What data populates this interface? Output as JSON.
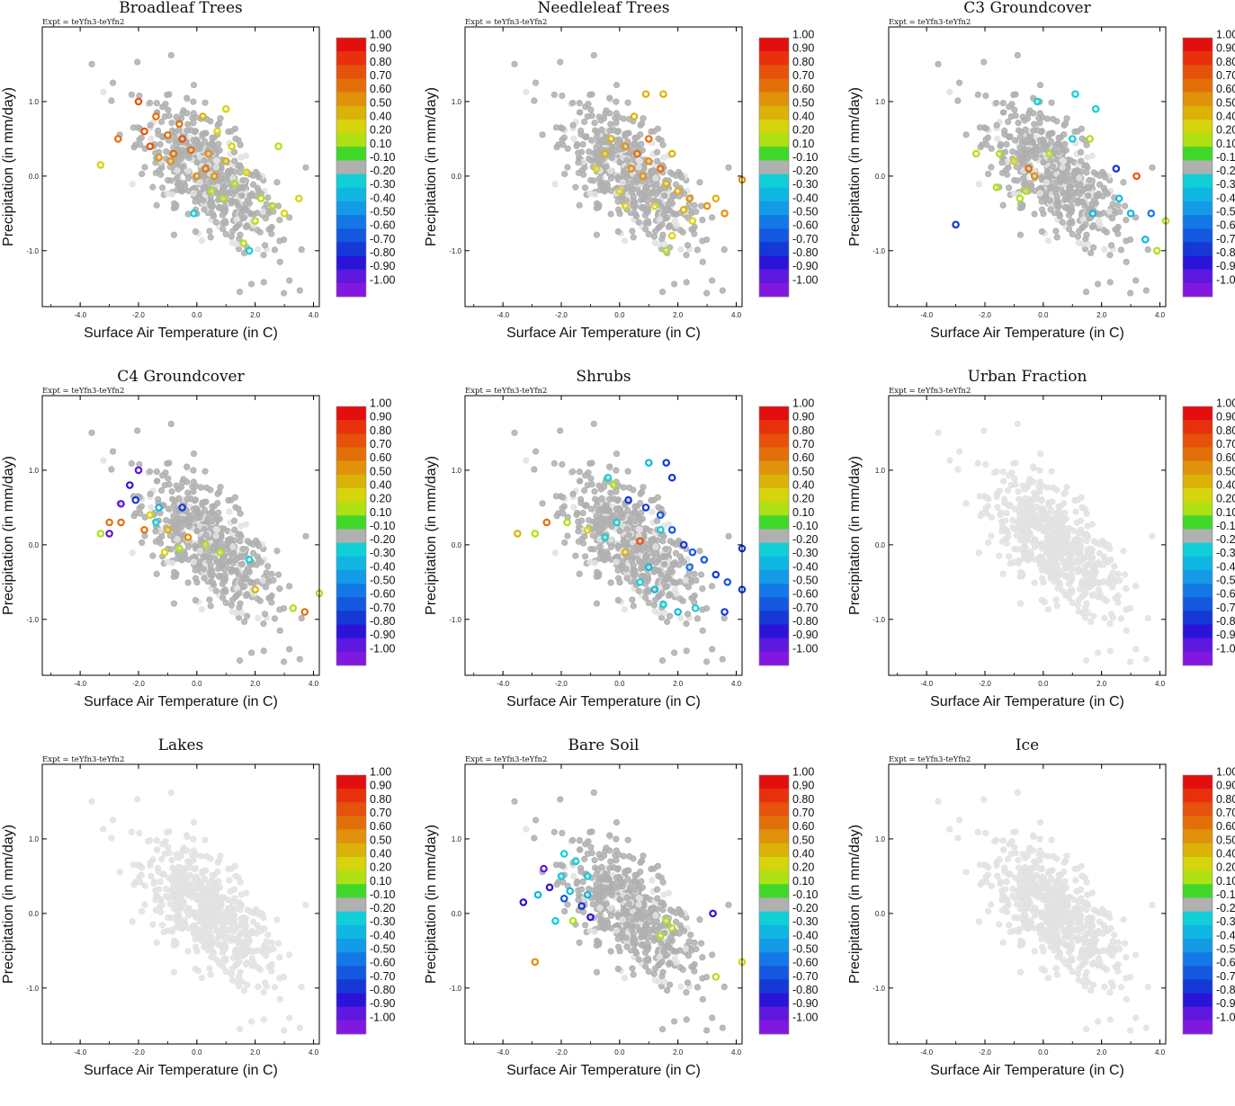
{
  "figure": {
    "expt_label": "Expt = teYfn3-teYfn2",
    "xlabel": "Surface Air Temperature (in C)",
    "ylabel": "Precipitation (in mm/day)"
  },
  "colors": {
    "no_data": "#e2e2e2",
    "background_points": "#b0b0b0",
    "axes": "#000000"
  },
  "colorbar": {
    "labels": [
      "1.00",
      "0.90",
      "0.80",
      "0.70",
      "0.60",
      "0.50",
      "0.40",
      "0.20",
      "0.10",
      "-0.10",
      "-0.20",
      "-0.30",
      "-0.40",
      "-0.50",
      "-0.60",
      "-0.70",
      "-0.80",
      "-0.90",
      "-1.00"
    ],
    "colors": [
      "#e30f0f",
      "#e8300c",
      "#e6520b",
      "#e27008",
      "#e0920a",
      "#dbb208",
      "#d6d40a",
      "#aee014",
      "#3fd82a",
      "#b0b0b0",
      "#11cfd6",
      "#10b6e2",
      "#139be6",
      "#1378e6",
      "#1458e0",
      "#1538d6",
      "#2a14d8",
      "#5e18e0",
      "#8218e0"
    ]
  },
  "chart_data": [
    {
      "type": "scatter",
      "title": "Broadleaf Trees",
      "xlabel": "Surface Air Temperature (in C)",
      "ylabel": "Precipitation (in mm/day)",
      "xlim": [
        -5.3,
        4.2
      ],
      "ylim": [
        -1.75,
        2.0
      ],
      "xticks": [
        "-4.0",
        "-2.0",
        "0.0",
        "2.0",
        "4.0"
      ],
      "yticks": [
        "-1.0",
        "0.0",
        "1.0"
      ],
      "color_field": "correlation",
      "color_range": [
        -1.0,
        1.0
      ],
      "points": [
        [
          -2.0,
          1.0,
          0.75
        ],
        [
          -1.4,
          0.8,
          0.7
        ],
        [
          -1.8,
          0.6,
          0.75
        ],
        [
          -2.7,
          0.5,
          0.7
        ],
        [
          -1.6,
          0.4,
          0.75
        ],
        [
          -1.0,
          0.55,
          0.7
        ],
        [
          -0.5,
          0.5,
          0.8
        ],
        [
          -0.8,
          0.3,
          0.7
        ],
        [
          -0.2,
          0.35,
          0.7
        ],
        [
          0.3,
          0.1,
          0.65
        ],
        [
          0.6,
          0.0,
          0.6
        ],
        [
          1.0,
          0.2,
          0.45
        ],
        [
          1.3,
          -0.1,
          0.15
        ],
        [
          1.7,
          0.05,
          0.3
        ],
        [
          2.2,
          -0.3,
          0.15
        ],
        [
          2.6,
          -0.4,
          0.2
        ],
        [
          3.0,
          -0.5,
          0.25
        ],
        [
          3.5,
          -0.3,
          0.3
        ],
        [
          2.0,
          -0.6,
          0.2
        ],
        [
          1.6,
          -0.9,
          0.15
        ],
        [
          1.8,
          -1.0,
          -0.25
        ],
        [
          1.0,
          0.9,
          0.4
        ],
        [
          0.2,
          0.8,
          0.45
        ],
        [
          0.7,
          0.6,
          0.4
        ],
        [
          -0.1,
          -0.5,
          -0.25
        ],
        [
          -3.3,
          0.15,
          0.4
        ],
        [
          -1.3,
          0.25,
          0.6
        ],
        [
          -0.9,
          0.2,
          0.55
        ],
        [
          0.0,
          0.0,
          0.6
        ],
        [
          0.5,
          -0.2,
          0.15
        ],
        [
          0.9,
          -0.3,
          0.12
        ],
        [
          1.2,
          0.4,
          0.4
        ],
        [
          0.4,
          0.3,
          0.55
        ],
        [
          -0.6,
          0.7,
          0.65
        ],
        [
          2.8,
          0.4,
          0.2
        ]
      ]
    },
    {
      "type": "scatter",
      "title": "Needleleaf Trees",
      "xlabel": "Surface Air Temperature (in C)",
      "ylabel": "Precipitation (in mm/day)",
      "xlim": [
        -5.3,
        4.2
      ],
      "ylim": [
        -1.75,
        2.0
      ],
      "xticks": [
        "-4.0",
        "-2.0",
        "0.0",
        "2.0",
        "4.0"
      ],
      "yticks": [
        "-1.0",
        "0.0",
        "1.0"
      ],
      "color_field": "correlation",
      "color_range": [
        -1.0,
        1.0
      ],
      "points": [
        [
          -0.3,
          0.5,
          0.5
        ],
        [
          0.2,
          0.4,
          0.6
        ],
        [
          0.6,
          0.3,
          0.65
        ],
        [
          1.0,
          0.2,
          0.6
        ],
        [
          1.4,
          0.1,
          0.65
        ],
        [
          0.8,
          0.0,
          0.55
        ],
        [
          1.6,
          -0.1,
          0.5
        ],
        [
          2.0,
          -0.2,
          0.45
        ],
        [
          2.4,
          -0.3,
          0.55
        ],
        [
          3.0,
          -0.4,
          0.6
        ],
        [
          3.6,
          -0.5,
          0.6
        ],
        [
          0.9,
          1.1,
          0.45
        ],
        [
          1.5,
          1.1,
          0.5
        ],
        [
          0.5,
          0.8,
          0.45
        ],
        [
          -0.5,
          0.3,
          0.5
        ],
        [
          0.0,
          -0.2,
          0.35
        ],
        [
          1.2,
          -0.4,
          0.3
        ],
        [
          1.8,
          -0.8,
          0.25
        ],
        [
          1.6,
          -1.0,
          0.2
        ],
        [
          2.5,
          -0.6,
          0.4
        ],
        [
          3.3,
          -0.3,
          0.5
        ],
        [
          4.2,
          -0.05,
          0.6
        ],
        [
          1.0,
          0.5,
          0.65
        ],
        [
          0.4,
          0.1,
          0.6
        ],
        [
          1.8,
          0.3,
          0.5
        ],
        [
          -0.8,
          0.1,
          0.4
        ],
        [
          0.2,
          -0.4,
          0.35
        ],
        [
          2.2,
          -0.45,
          0.5
        ]
      ]
    },
    {
      "type": "scatter",
      "title": "C3 Groundcover",
      "xlabel": "Surface Air Temperature (in C)",
      "ylabel": "Precipitation (in mm/day)",
      "xlim": [
        -5.3,
        4.2
      ],
      "ylim": [
        -1.75,
        2.0
      ],
      "xticks": [
        "-4.0",
        "-2.0",
        "0.0",
        "2.0",
        "4.0"
      ],
      "yticks": [
        "-1.0",
        "0.0",
        "1.0"
      ],
      "color_field": "correlation",
      "color_range": [
        -1.0,
        1.0
      ],
      "points": [
        [
          -0.3,
          0.0,
          0.6
        ],
        [
          -0.5,
          0.1,
          0.65
        ],
        [
          -1.0,
          0.2,
          0.3
        ],
        [
          -1.5,
          0.3,
          0.15
        ],
        [
          -2.3,
          0.3,
          0.12
        ],
        [
          -1.6,
          -0.15,
          0.15
        ],
        [
          -0.8,
          -0.3,
          0.15
        ],
        [
          -3.0,
          -0.65,
          -0.7
        ],
        [
          -0.2,
          1.0,
          -0.2
        ],
        [
          1.0,
          0.5,
          -0.2
        ],
        [
          1.6,
          0.5,
          0.15
        ],
        [
          1.8,
          0.9,
          -0.25
        ],
        [
          1.1,
          1.1,
          -0.2
        ],
        [
          2.5,
          0.1,
          -0.7
        ],
        [
          3.2,
          0.0,
          0.8
        ],
        [
          2.6,
          -0.3,
          -0.3
        ],
        [
          3.0,
          -0.5,
          -0.35
        ],
        [
          3.7,
          -0.5,
          -0.5
        ],
        [
          3.5,
          -0.85,
          -0.3
        ],
        [
          3.9,
          -1.0,
          0.15
        ],
        [
          4.2,
          -0.6,
          0.12
        ],
        [
          1.7,
          -0.5,
          -0.3
        ],
        [
          0.2,
          0.3,
          0.12
        ],
        [
          -0.6,
          -0.2,
          0.12
        ]
      ]
    },
    {
      "type": "scatter",
      "title": "C4 Groundcover",
      "xlabel": "Surface Air Temperature (in C)",
      "ylabel": "Precipitation (in mm/day)",
      "xlim": [
        -5.3,
        4.2
      ],
      "ylim": [
        -1.75,
        2.0
      ],
      "xticks": [
        "-4.0",
        "-2.0",
        "0.0",
        "2.0",
        "4.0"
      ],
      "yticks": [
        "-1.0",
        "0.0",
        "1.0"
      ],
      "color_field": "correlation",
      "color_range": [
        -1.0,
        1.0
      ],
      "points": [
        [
          -2.0,
          1.0,
          -0.9
        ],
        [
          -2.3,
          0.8,
          -0.85
        ],
        [
          -2.1,
          0.6,
          -0.75
        ],
        [
          -1.3,
          0.5,
          -0.35
        ],
        [
          -0.5,
          0.5,
          -0.7
        ],
        [
          -1.6,
          0.4,
          0.4
        ],
        [
          -3.0,
          0.3,
          0.7
        ],
        [
          -2.6,
          0.3,
          0.7
        ],
        [
          -1.8,
          0.2,
          0.65
        ],
        [
          -1.0,
          0.2,
          0.5
        ],
        [
          -0.3,
          0.1,
          0.55
        ],
        [
          0.3,
          0.0,
          0.2
        ],
        [
          -3.3,
          0.15,
          0.12
        ],
        [
          -3.0,
          0.15,
          -0.9
        ],
        [
          -1.1,
          -0.1,
          0.3
        ],
        [
          -0.6,
          -0.05,
          0.15
        ],
        [
          0.8,
          -0.1,
          0.15
        ],
        [
          1.8,
          -0.2,
          -0.2
        ],
        [
          2.0,
          -0.6,
          0.5
        ],
        [
          3.3,
          -0.85,
          0.15
        ],
        [
          3.7,
          -0.9,
          0.7
        ],
        [
          4.2,
          -0.65,
          0.15
        ],
        [
          -2.6,
          0.55,
          -0.9
        ],
        [
          -1.4,
          0.3,
          -0.2
        ]
      ]
    },
    {
      "type": "scatter",
      "title": "Shrubs",
      "xlabel": "Surface Air Temperature (in C)",
      "ylabel": "Precipitation (in mm/day)",
      "xlim": [
        -5.3,
        4.2
      ],
      "ylim": [
        -1.75,
        2.0
      ],
      "xticks": [
        "-4.0",
        "-2.0",
        "0.0",
        "2.0",
        "4.0"
      ],
      "yticks": [
        "-1.0",
        "0.0",
        "1.0"
      ],
      "color_field": "correlation",
      "color_range": [
        -1.0,
        1.0
      ],
      "points": [
        [
          1.0,
          1.1,
          -0.3
        ],
        [
          1.6,
          1.1,
          -0.7
        ],
        [
          1.8,
          0.9,
          -0.7
        ],
        [
          -0.4,
          0.9,
          -0.2
        ],
        [
          -0.2,
          0.8,
          0.2
        ],
        [
          0.3,
          0.6,
          -0.7
        ],
        [
          0.9,
          0.5,
          -0.7
        ],
        [
          1.4,
          0.4,
          -0.65
        ],
        [
          1.8,
          0.2,
          -0.6
        ],
        [
          2.2,
          0.0,
          -0.7
        ],
        [
          2.5,
          -0.1,
          -0.6
        ],
        [
          2.9,
          -0.2,
          -0.65
        ],
        [
          3.3,
          -0.4,
          -0.7
        ],
        [
          3.7,
          -0.5,
          -0.6
        ],
        [
          4.2,
          -0.05,
          -0.7
        ],
        [
          4.2,
          -0.6,
          -0.7
        ],
        [
          1.0,
          -0.3,
          -0.3
        ],
        [
          0.7,
          -0.5,
          -0.2
        ],
        [
          1.2,
          -0.6,
          -0.35
        ],
        [
          1.5,
          -0.8,
          -0.2
        ],
        [
          2.0,
          -0.9,
          -0.3
        ],
        [
          2.6,
          -0.85,
          -0.25
        ],
        [
          3.6,
          -0.9,
          -0.7
        ],
        [
          -3.5,
          0.15,
          0.45
        ],
        [
          -2.9,
          0.15,
          0.12
        ],
        [
          -2.5,
          0.3,
          0.65
        ],
        [
          -1.8,
          0.3,
          0.2
        ],
        [
          -1.1,
          0.2,
          0.4
        ],
        [
          -0.5,
          0.1,
          -0.2
        ],
        [
          0.2,
          -0.1,
          0.5
        ],
        [
          0.7,
          0.05,
          0.75
        ],
        [
          -0.1,
          0.3,
          -0.2
        ],
        [
          1.4,
          0.2,
          -0.25
        ],
        [
          2.4,
          -0.3,
          -0.5
        ]
      ]
    },
    {
      "type": "scatter",
      "title": "Urban Fraction",
      "xlabel": "Surface Air Temperature (in C)",
      "ylabel": "Precipitation (in mm/day)",
      "xlim": [
        -5.3,
        4.2
      ],
      "ylim": [
        -1.75,
        2.0
      ],
      "xticks": [
        "-4.0",
        "-2.0",
        "0.0",
        "2.0",
        "4.0"
      ],
      "yticks": [
        "-1.0",
        "0.0",
        "1.0"
      ],
      "color_field": "correlation",
      "color_range": [
        -1.0,
        1.0
      ],
      "points": []
    },
    {
      "type": "scatter",
      "title": "Lakes",
      "xlabel": "Surface Air Temperature (in C)",
      "ylabel": "Precipitation (in mm/day)",
      "xlim": [
        -5.3,
        4.2
      ],
      "ylim": [
        -1.75,
        2.0
      ],
      "xticks": [
        "-4.0",
        "-2.0",
        "0.0",
        "2.0",
        "4.0"
      ],
      "yticks": [
        "-1.0",
        "0.0",
        "1.0"
      ],
      "color_field": "correlation",
      "color_range": [
        -1.0,
        1.0
      ],
      "points": []
    },
    {
      "type": "scatter",
      "title": "Bare Soil",
      "xlabel": "Surface Air Temperature (in C)",
      "ylabel": "Precipitation (in mm/day)",
      "xlim": [
        -5.3,
        4.2
      ],
      "ylim": [
        -1.75,
        2.0
      ],
      "xticks": [
        "-4.0",
        "-2.0",
        "0.0",
        "2.0",
        "4.0"
      ],
      "yticks": [
        "-1.0",
        "0.0",
        "1.0"
      ],
      "color_field": "correlation",
      "color_range": [
        -1.0,
        1.0
      ],
      "points": [
        [
          -2.6,
          0.6,
          -0.9
        ],
        [
          -1.9,
          0.8,
          -0.2
        ],
        [
          -1.5,
          0.7,
          -0.25
        ],
        [
          -2.0,
          0.5,
          -0.2
        ],
        [
          -1.1,
          0.5,
          -0.25
        ],
        [
          -2.4,
          0.35,
          -0.8
        ],
        [
          -1.7,
          0.3,
          -0.3
        ],
        [
          -2.8,
          0.25,
          -0.3
        ],
        [
          -3.3,
          0.15,
          -0.85
        ],
        [
          -1.9,
          0.2,
          -0.6
        ],
        [
          -1.3,
          0.1,
          -0.7
        ],
        [
          -1.0,
          -0.05,
          -0.8
        ],
        [
          -2.2,
          -0.1,
          -0.2
        ],
        [
          -1.6,
          -0.1,
          0.15
        ],
        [
          -2.9,
          -0.65,
          0.6
        ],
        [
          1.6,
          -0.1,
          0.15
        ],
        [
          1.8,
          -0.2,
          0.2
        ],
        [
          3.2,
          0.0,
          -0.85
        ],
        [
          1.4,
          -0.3,
          0.15
        ],
        [
          3.3,
          -0.85,
          0.2
        ],
        [
          4.2,
          -0.65,
          0.3
        ],
        [
          -1.1,
          0.25,
          -0.35
        ]
      ]
    },
    {
      "type": "scatter",
      "title": "Ice",
      "xlabel": "Surface Air Temperature (in C)",
      "ylabel": "Precipitation (in mm/day)",
      "xlim": [
        -5.3,
        4.2
      ],
      "ylim": [
        -1.75,
        2.0
      ],
      "xticks": [
        "-4.0",
        "-2.0",
        "0.0",
        "2.0",
        "4.0"
      ],
      "yticks": [
        "-1.0",
        "0.0",
        "1.0"
      ],
      "color_field": "correlation",
      "color_range": [
        -1.0,
        1.0
      ],
      "points": []
    }
  ]
}
